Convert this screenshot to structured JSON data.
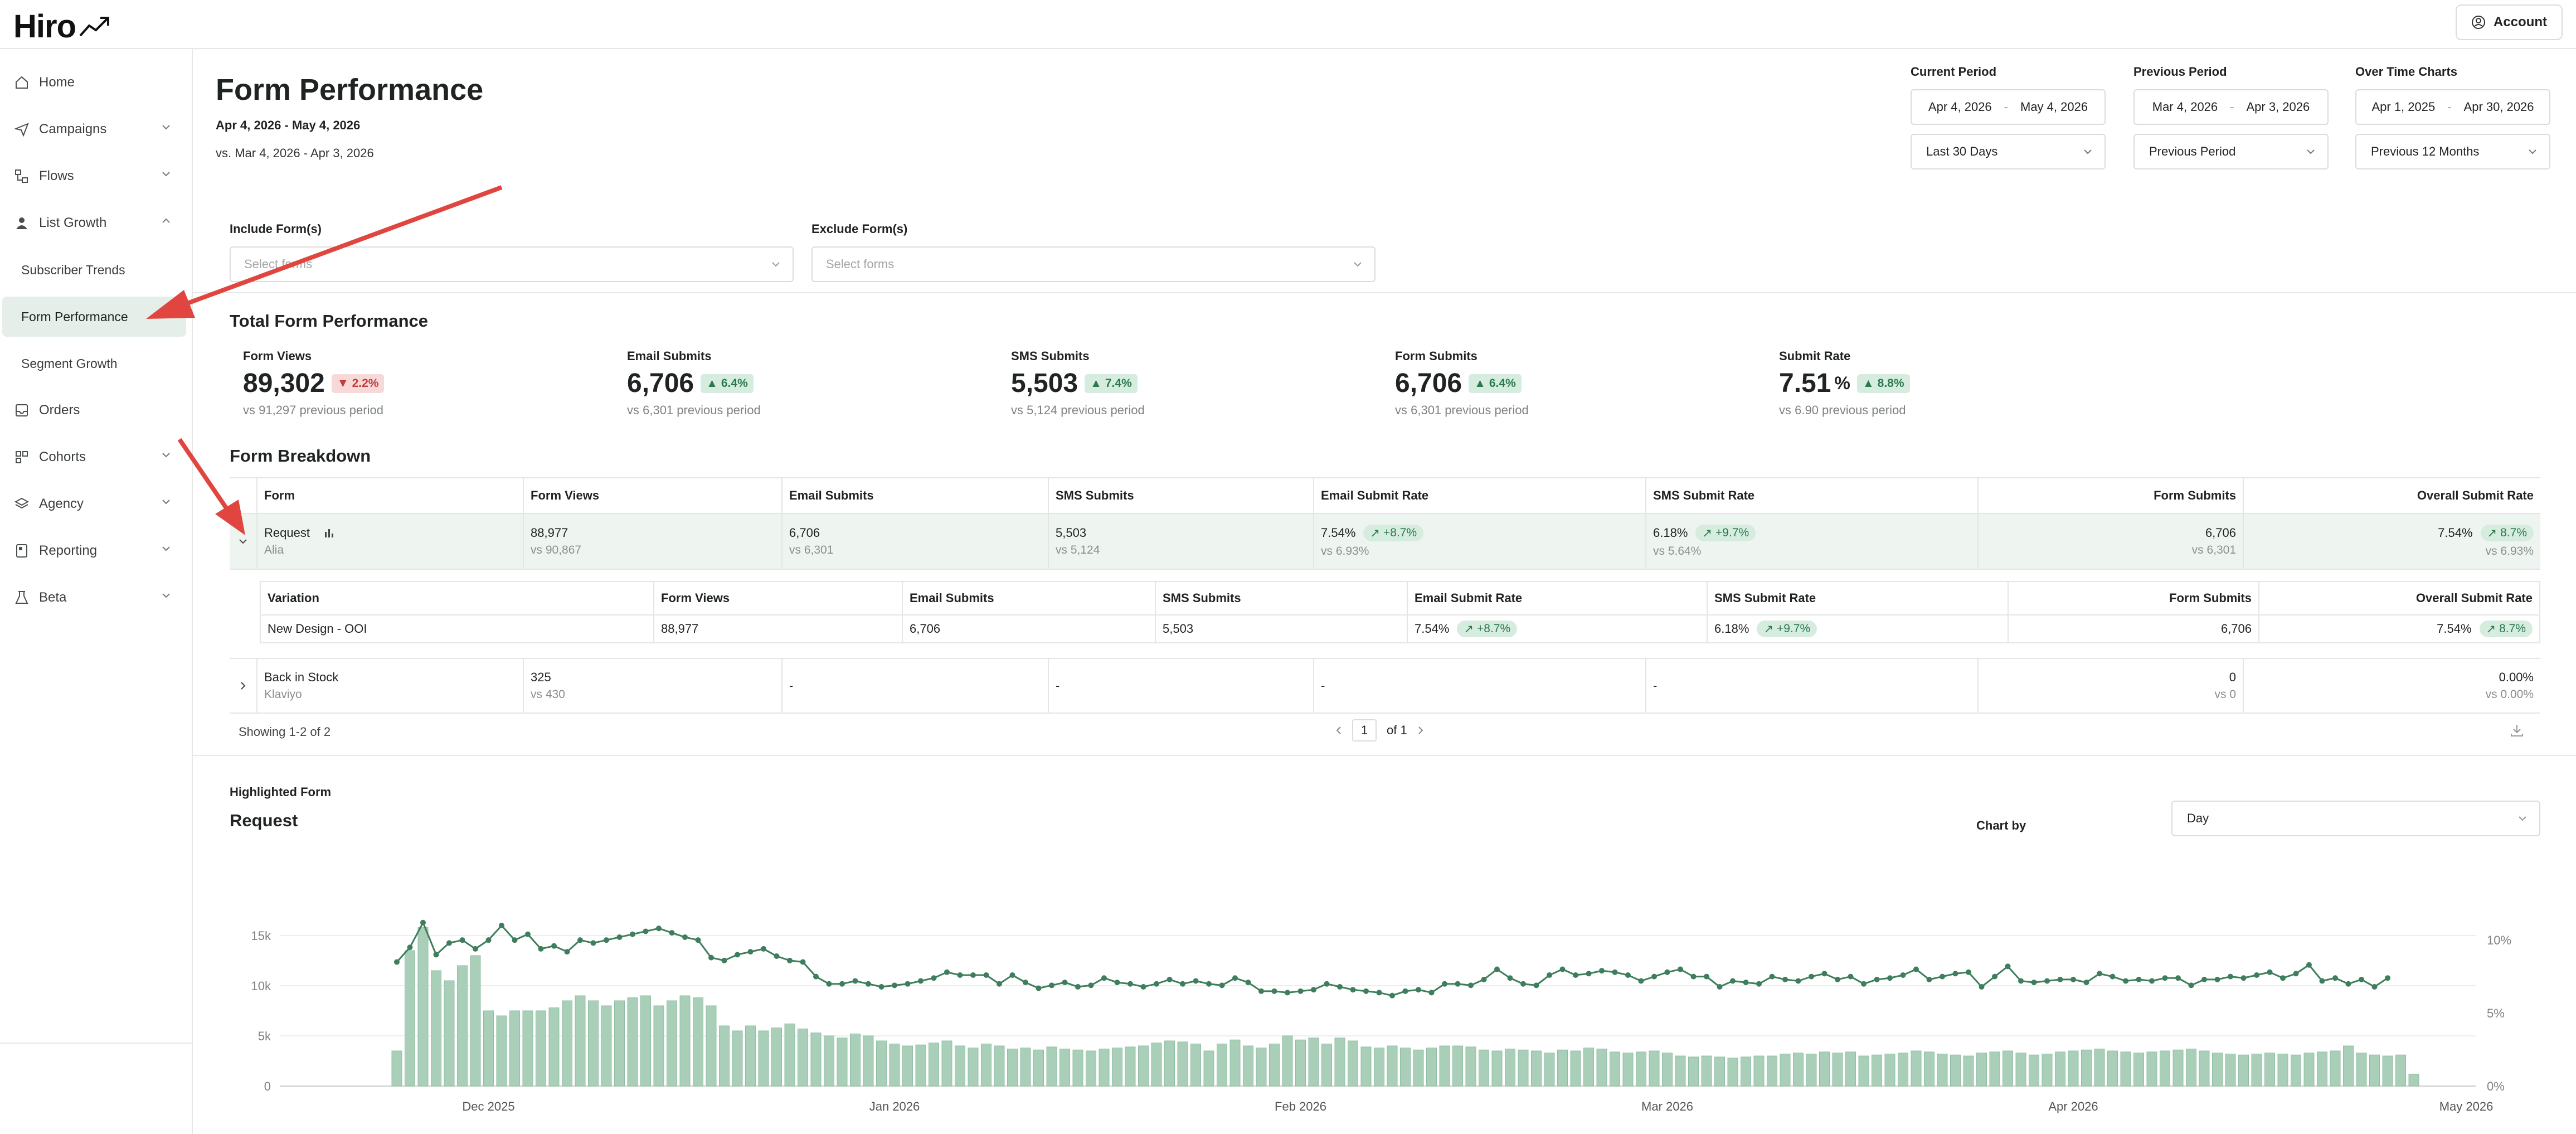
{
  "app": {
    "logo": "Hiro",
    "account_label": "Account"
  },
  "sidebar": {
    "items": [
      {
        "label": "Home",
        "icon": "home-icon",
        "expandable": false
      },
      {
        "label": "Campaigns",
        "icon": "send-icon",
        "expandable": true
      },
      {
        "label": "Flows",
        "icon": "flow-icon",
        "expandable": true
      },
      {
        "label": "List Growth",
        "icon": "user-icon",
        "expandable": true,
        "expanded": true
      },
      {
        "label": "Orders",
        "icon": "inbox-icon",
        "expandable": false
      },
      {
        "label": "Cohorts",
        "icon": "cohorts-icon",
        "expandable": true
      },
      {
        "label": "Agency",
        "icon": "layers-icon",
        "expandable": true
      },
      {
        "label": "Reporting",
        "icon": "report-icon",
        "expandable": true
      },
      {
        "label": "Beta",
        "icon": "flask-icon",
        "expandable": true
      }
    ],
    "subitems": [
      {
        "label": "Subscriber Trends",
        "active": false
      },
      {
        "label": "Form Performance",
        "active": true
      },
      {
        "label": "Segment Growth",
        "active": false
      }
    ]
  },
  "header": {
    "title": "Form Performance",
    "date_range": "Apr 4, 2026 - May 4, 2026",
    "vs_range": "vs. Mar 4, 2026 - Apr 3, 2026"
  },
  "periods": {
    "current": {
      "label": "Current Period",
      "start": "Apr 4, 2026",
      "sep": "-",
      "end": "May 4, 2026",
      "select": "Last 30 Days"
    },
    "previous": {
      "label": "Previous Period",
      "start": "Mar 4, 2026",
      "sep": "-",
      "end": "Apr 3, 2026",
      "select": "Previous Period"
    },
    "overtime": {
      "label": "Over Time Charts",
      "start": "Apr 1, 2025",
      "sep": "-",
      "end": "Apr 30, 2026",
      "select": "Previous 12 Months"
    }
  },
  "filters": {
    "include_label": "Include Form(s)",
    "include_placeholder": "Select forms",
    "exclude_label": "Exclude Form(s)",
    "exclude_placeholder": "Select forms"
  },
  "total": {
    "title": "Total Form Performance",
    "stats": [
      {
        "label": "Form Views",
        "value": "89,302",
        "unit": "",
        "change": "2.2%",
        "direction": "down",
        "prev": "vs 91,297 previous period"
      },
      {
        "label": "Email Submits",
        "value": "6,706",
        "unit": "",
        "change": "6.4%",
        "direction": "up",
        "prev": "vs 6,301 previous period"
      },
      {
        "label": "SMS Submits",
        "value": "5,503",
        "unit": "",
        "change": "7.4%",
        "direction": "up",
        "prev": "vs 5,124 previous period"
      },
      {
        "label": "Form Submits",
        "value": "6,706",
        "unit": "",
        "change": "6.4%",
        "direction": "up",
        "prev": "vs 6,301 previous period"
      },
      {
        "label": "Submit Rate",
        "value": "7.51",
        "unit": "%",
        "change": "8.8%",
        "direction": "up",
        "prev": "vs 6.90 previous period"
      }
    ]
  },
  "breakdown": {
    "title": "Form Breakdown",
    "headers": [
      "Form",
      "Form Views",
      "Email Submits",
      "SMS Submits",
      "Email Submit Rate",
      "SMS Submit Rate",
      "Form Submits",
      "Overall Submit Rate"
    ],
    "rows": [
      {
        "name": "Request",
        "source": "Alia",
        "views": "88,977",
        "views_prev": "vs 90,867",
        "email": "6,706",
        "email_prev": "vs 6,301",
        "sms": "5,503",
        "sms_prev": "vs 5,124",
        "email_rate": "7.54%",
        "email_rate_change": "+8.7%",
        "email_rate_prev": "vs 6.93%",
        "sms_rate": "6.18%",
        "sms_rate_change": "+9.7%",
        "sms_rate_prev": "vs 5.64%",
        "form_submits": "6,706",
        "form_submits_prev": "vs 6,301",
        "overall": "7.54%",
        "overall_change": "8.7%",
        "overall_prev": "vs 6.93%"
      },
      {
        "name": "Back in Stock",
        "source": "Klaviyo",
        "views": "325",
        "views_prev": "vs 430",
        "email": "-",
        "sms": "-",
        "email_rate": "-",
        "sms_rate": "-",
        "form_submits": "0",
        "form_submits_prev": "vs 0",
        "overall": "0.00%",
        "overall_prev": "vs 0.00%"
      }
    ],
    "variation_headers": [
      "Variation",
      "Form Views",
      "Email Submits",
      "SMS Submits",
      "Email Submit Rate",
      "SMS Submit Rate",
      "Form Submits",
      "Overall Submit Rate"
    ],
    "variation": {
      "name": "New Design - OOI",
      "views": "88,977",
      "email": "6,706",
      "sms": "5,503",
      "email_rate": "7.54%",
      "email_rate_change": "+8.7%",
      "sms_rate": "6.18%",
      "sms_rate_change": "+9.7%",
      "form_submits": "6,706",
      "overall": "7.54%",
      "overall_change": "8.7%"
    },
    "showing": "Showing 1-2 of 2",
    "page": "1",
    "of_pages": "of 1"
  },
  "highlighted": {
    "label": "Highlighted Form",
    "name": "Request",
    "chart_by_label": "Chart by",
    "chart_by_value": "Day"
  },
  "colors": {
    "accent": "#5a9c78",
    "bar": "#a9cfb8",
    "bar_edge": "#8fbfa3",
    "line": "#3f7e5c",
    "red": "#e0463f"
  },
  "chart_data": {
    "type": "bar",
    "categories_note": "",
    "x_ticks": [
      "Dec 2025",
      "Jan 2026",
      "Feb 2026",
      "Mar 2026",
      "Apr 2026",
      "May 2026"
    ],
    "y_ticks": [
      "0",
      "5k",
      "10k",
      "15k"
    ],
    "y2_ticks": [
      "0%",
      "5%",
      "10%"
    ],
    "ylim": [
      0,
      16000
    ],
    "y2lim": [
      0,
      11
    ],
    "start_date": "2025-11-24",
    "series": [
      {
        "type": "bar",
        "values": [
          3500,
          13500,
          15800,
          11500,
          10500,
          12000,
          13000,
          7500,
          7000,
          7500,
          7500,
          7500,
          7800,
          8500,
          9000,
          8500,
          8000,
          8500,
          8800,
          9000,
          8000,
          8500,
          9000,
          8800,
          8000,
          6000,
          5500,
          6000,
          5500,
          5800,
          6200,
          5700,
          5300,
          5000,
          4800,
          5200,
          5000,
          4500,
          4200,
          4000,
          4100,
          4300,
          4500,
          4000,
          3800,
          4200,
          4000,
          3700,
          3800,
          3600,
          3900,
          3700,
          3600,
          3500,
          3700,
          3800,
          3900,
          4000,
          4300,
          4500,
          4400,
          4200,
          3500,
          4200,
          4600,
          4000,
          3800,
          4200,
          5000,
          4600,
          4800,
          4200,
          4800,
          4500,
          3900,
          3800,
          4000,
          3800,
          3600,
          3800,
          4000,
          4000,
          3900,
          3600,
          3500,
          3700,
          3600,
          3500,
          3300,
          3600,
          3500,
          3800,
          3700,
          3400,
          3300,
          3400,
          3500,
          3300,
          3000,
          2900,
          3000,
          2900,
          2800,
          2900,
          3000,
          3000,
          3200,
          3300,
          3200,
          3400,
          3300,
          3400,
          3000,
          3100,
          3200,
          3300,
          3500,
          3400,
          3200,
          3100,
          3000,
          3300,
          3400,
          3500,
          3300,
          3100,
          3200,
          3400,
          3500,
          3600,
          3700,
          3500,
          3400,
          3300,
          3400,
          3500,
          3600,
          3700,
          3500,
          3300,
          3200,
          3100,
          3200,
          3300,
          3200,
          3100,
          3300,
          3400,
          3500,
          4000,
          3300,
          3100,
          3000,
          3100,
          1200
        ]
      },
      {
        "type": "line",
        "values": [
          8.5,
          9.5,
          11.2,
          9.0,
          9.8,
          10.0,
          9.4,
          10.0,
          11.0,
          10.0,
          10.4,
          9.4,
          9.6,
          9.2,
          10.0,
          9.8,
          10.0,
          10.2,
          10.4,
          10.6,
          10.8,
          10.5,
          10.2,
          10.0,
          8.8,
          8.6,
          9.0,
          9.2,
          9.4,
          8.9,
          8.6,
          8.5,
          7.5,
          7.0,
          7.0,
          7.2,
          7.0,
          6.8,
          6.9,
          7.0,
          7.2,
          7.4,
          7.8,
          7.6,
          7.6,
          7.6,
          7.0,
          7.6,
          7.1,
          6.7,
          6.9,
          7.1,
          6.8,
          6.9,
          7.4,
          7.1,
          7.0,
          6.8,
          7.0,
          7.3,
          7.0,
          7.2,
          7.0,
          6.9,
          7.4,
          7.1,
          6.5,
          6.5,
          6.4,
          6.5,
          6.6,
          7.0,
          6.8,
          6.6,
          6.5,
          6.4,
          6.2,
          6.5,
          6.6,
          6.4,
          7.0,
          7.0,
          6.9,
          7.3,
          8.0,
          7.4,
          7.0,
          6.9,
          7.6,
          8.0,
          7.6,
          7.7,
          7.9,
          7.8,
          7.6,
          7.2,
          7.5,
          7.8,
          8.0,
          7.5,
          7.5,
          6.8,
          7.2,
          7.1,
          7.0,
          7.5,
          7.3,
          7.2,
          7.5,
          7.7,
          7.3,
          7.5,
          7.0,
          7.3,
          7.4,
          7.6,
          8.0,
          7.3,
          7.5,
          7.7,
          7.8,
          6.8,
          7.5,
          8.2,
          7.2,
          7.1,
          7.2,
          7.3,
          7.3,
          7.1,
          7.7,
          7.5,
          7.2,
          7.3,
          7.2,
          7.4,
          7.4,
          6.9,
          7.3,
          7.3,
          7.5,
          7.4,
          7.6,
          7.8,
          7.4,
          7.7,
          8.3,
          7.2,
          7.4,
          7.0,
          7.3,
          6.8,
          7.4
        ]
      }
    ]
  }
}
